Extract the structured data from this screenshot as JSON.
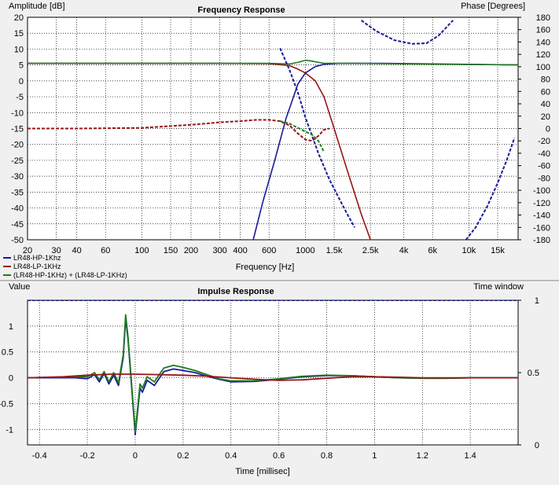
{
  "chart_data": [
    {
      "type": "line",
      "title": "Frequency Response",
      "ylabel": "Amplitude [dB]",
      "ylabel_right": "Phase [Degrees]",
      "xlabel": "Frequency [Hz]",
      "xscale": "log",
      "xlim": [
        20,
        20000
      ],
      "ylim": [
        -50,
        20
      ],
      "ylim_right": [
        -180,
        180
      ],
      "grid": true,
      "legend_position": "bottom-left",
      "x_ticks": [
        {
          "v": 20,
          "label": "20"
        },
        {
          "v": 30,
          "label": "30"
        },
        {
          "v": 40,
          "label": "40"
        },
        {
          "v": 60,
          "label": "60"
        },
        {
          "v": 100,
          "label": "100"
        },
        {
          "v": 150,
          "label": "150"
        },
        {
          "v": 200,
          "label": "200"
        },
        {
          "v": 300,
          "label": "300"
        },
        {
          "v": 400,
          "label": "400"
        },
        {
          "v": 600,
          "label": "600"
        },
        {
          "v": 1000,
          "label": "1000"
        },
        {
          "v": 1500,
          "label": "1.5k"
        },
        {
          "v": 2500,
          "label": "2.5k"
        },
        {
          "v": 4000,
          "label": "4k"
        },
        {
          "v": 6000,
          "label": "6k"
        },
        {
          "v": 10000,
          "label": "10k"
        },
        {
          "v": 15000,
          "label": "15k"
        }
      ],
      "y_ticks": [
        "20",
        "15",
        "10",
        "5",
        "0",
        "-5",
        "-10",
        "-15",
        "-20",
        "-25",
        "-30",
        "-35",
        "-40",
        "-45",
        "-50"
      ],
      "y_ticks_right": [
        "180",
        "160",
        "140",
        "120",
        "100",
        "80",
        "60",
        "40",
        "20",
        "0",
        "-20",
        "-40",
        "-60",
        "-80",
        "-100",
        "-120",
        "-140",
        "-160",
        "-180"
      ],
      "series": [
        {
          "name": "LR48-HP-1Khz",
          "color": "#1a1a9a",
          "kind": "magnitude",
          "x": [
            480,
            550,
            650,
            760,
            900,
            1000,
            1150,
            1300,
            1600,
            2000,
            3000,
            20000
          ],
          "y": [
            -50,
            -38,
            -25,
            -12,
            -1,
            2.5,
            4.5,
            5.2,
            5.5,
            5.5,
            5.5,
            5
          ]
        },
        {
          "name": "LR48-LP-1KHz",
          "color": "#9a1414",
          "kind": "magnitude",
          "x": [
            20,
            300,
            600,
            800,
            900,
            1000,
            1150,
            1300,
            1500,
            1800,
            2200,
            2500
          ],
          "y": [
            5.5,
            5.5,
            5.4,
            4.8,
            3.7,
            2.5,
            0,
            -5,
            -15,
            -28,
            -42,
            -50
          ]
        },
        {
          "name": "(LR48-HP-1KHz) + (LR48-LP-1KHz)",
          "color": "#1e7a1e",
          "kind": "magnitude",
          "x": [
            20,
            600,
            800,
            900,
            1000,
            1100,
            1300,
            2000,
            20000
          ],
          "y": [
            5.5,
            5.5,
            5.3,
            5.8,
            6.5,
            6.2,
            5.5,
            5.5,
            5
          ]
        },
        {
          "name": "LR48-HP-1Khz",
          "color": "#1a1a9a",
          "kind": "phase",
          "dashed": true,
          "x": [
            700,
            800,
            900,
            1000,
            1100,
            1200,
            1400,
            1600,
            1800,
            2000
          ],
          "y": [
            130,
            95,
            58,
            18,
            -12,
            -40,
            -82,
            -112,
            -138,
            -160
          ]
        },
        {
          "name": "LR48-HP-1Khz",
          "color": "#1a1a9a",
          "kind": "phase",
          "dashed": true,
          "x": [
            2200,
            2700,
            3500,
            4500,
            5500,
            6500,
            8000
          ],
          "y": [
            175,
            158,
            143,
            137,
            138,
            150,
            175
          ]
        },
        {
          "name": "LR48-HP-1Khz",
          "color": "#1a1a9a",
          "kind": "phase",
          "dashed": true,
          "x": [
            9600,
            11000,
            13000,
            15000,
            17000,
            19000
          ],
          "y": [
            -180,
            -160,
            -125,
            -88,
            -52,
            -15
          ]
        },
        {
          "name": "LR48-LP-1KHz",
          "color": "#9a1414",
          "kind": "phase",
          "dashed": true,
          "x": [
            20,
            40,
            100,
            200,
            300,
            400,
            500,
            600,
            700,
            800,
            900,
            1000,
            1100,
            1200,
            1300,
            1400
          ],
          "y": [
            0,
            0,
            1,
            6,
            10,
            12,
            14,
            14,
            12,
            5,
            -8,
            -18,
            -20,
            -12,
            -2,
            0
          ]
        },
        {
          "name": "(LR48-HP-1KHz) + (LR48-LP-1KHz)",
          "color": "#1e7a1e",
          "kind": "phase",
          "dashed": true,
          "x": [
            700,
            800,
            900,
            1000,
            1100,
            1200,
            1300
          ],
          "y": [
            12,
            8,
            1,
            -5,
            -10,
            -20,
            -38
          ]
        }
      ]
    },
    {
      "type": "line",
      "title": "Impulse Response",
      "ylabel": "Value",
      "ylabel_right": "Time window",
      "xlabel": "Time [millisec]",
      "xlim": [
        -0.45,
        1.6
      ],
      "ylim": [
        -1.3,
        1.5
      ],
      "ylim_right": [
        0,
        1
      ],
      "grid": true,
      "x_ticks": [
        "-0.4",
        "-0.2",
        "0",
        "0.2",
        "0.4",
        "0.6",
        "0.8",
        "1",
        "1.2",
        "1.4"
      ],
      "y_ticks": [
        "1",
        "0.5",
        "0",
        "-0.5",
        "-1"
      ],
      "y_ticks_right": [
        "1",
        "0.5",
        "0"
      ],
      "series": [
        {
          "name": "LR48-HP-1Khz",
          "color": "#1a1a9a",
          "x": [
            -0.45,
            -0.25,
            -0.2,
            -0.17,
            -0.15,
            -0.13,
            -0.11,
            -0.09,
            -0.07,
            -0.05,
            -0.04,
            -0.03,
            0,
            0.02,
            0.03,
            0.05,
            0.08,
            0.12,
            0.16,
            0.2,
            0.25,
            0.3,
            0.35,
            0.4,
            0.5,
            0.6,
            0.7,
            0.8,
            0.9,
            1.0,
            1.1,
            1.2,
            1.3,
            1.4,
            1.5,
            1.6
          ],
          "y": [
            0,
            0,
            -0.02,
            0.06,
            -0.08,
            0.08,
            -0.12,
            0.05,
            -0.15,
            0.4,
            1.15,
            0.75,
            -1.1,
            -0.2,
            -0.28,
            -0.05,
            -0.15,
            0.12,
            0.17,
            0.14,
            0.1,
            0.03,
            -0.03,
            -0.08,
            -0.07,
            -0.03,
            0.02,
            0.04,
            0.04,
            0.02,
            0.0,
            -0.01,
            -0.01,
            0,
            0,
            0
          ]
        },
        {
          "name": "(LR48-HP-1KHz) + (LR48-LP-1KHz)",
          "color": "#1e7a1e",
          "x": [
            -0.45,
            -0.25,
            -0.2,
            -0.17,
            -0.15,
            -0.13,
            -0.11,
            -0.09,
            -0.07,
            -0.05,
            -0.04,
            -0.03,
            0,
            0.02,
            0.03,
            0.05,
            0.08,
            0.12,
            0.16,
            0.2,
            0.25,
            0.3,
            0.35,
            0.4,
            0.5,
            0.6,
            0.7,
            0.8,
            0.9,
            1.0,
            1.1,
            1.2,
            1.3,
            1.4,
            1.5,
            1.6
          ],
          "y": [
            0,
            0.02,
            0.02,
            0.1,
            -0.04,
            0.12,
            -0.08,
            0.1,
            -0.1,
            0.45,
            1.22,
            0.8,
            -1.05,
            -0.12,
            -0.2,
            0.02,
            -0.08,
            0.19,
            0.24,
            0.2,
            0.14,
            0.06,
            -0.02,
            -0.06,
            -0.06,
            -0.02,
            0.03,
            0.05,
            0.04,
            0.02,
            0.0,
            -0.01,
            -0.01,
            0,
            0,
            0
          ]
        },
        {
          "name": "LR48-LP-1KHz",
          "color": "#9a1414",
          "x": [
            -0.45,
            -0.3,
            -0.2,
            -0.1,
            0,
            0.1,
            0.2,
            0.3,
            0.4,
            0.5,
            0.6,
            0.7,
            0.8,
            0.9,
            1.0,
            1.1,
            1.2,
            1.3,
            1.4,
            1.5,
            1.6
          ],
          "y": [
            0,
            0.02,
            0.05,
            0.07,
            0.07,
            0.06,
            0.05,
            0.03,
            0.0,
            -0.03,
            -0.05,
            -0.04,
            -0.01,
            0.02,
            0.02,
            0.01,
            0.0,
            0.0,
            0.0,
            0.0,
            0.0
          ]
        },
        {
          "name": "Time window",
          "color": "#1a1a9a",
          "axis": "right",
          "dashed": true,
          "x": [
            -0.45,
            1.6
          ],
          "y": [
            1,
            1
          ]
        }
      ]
    }
  ]
}
